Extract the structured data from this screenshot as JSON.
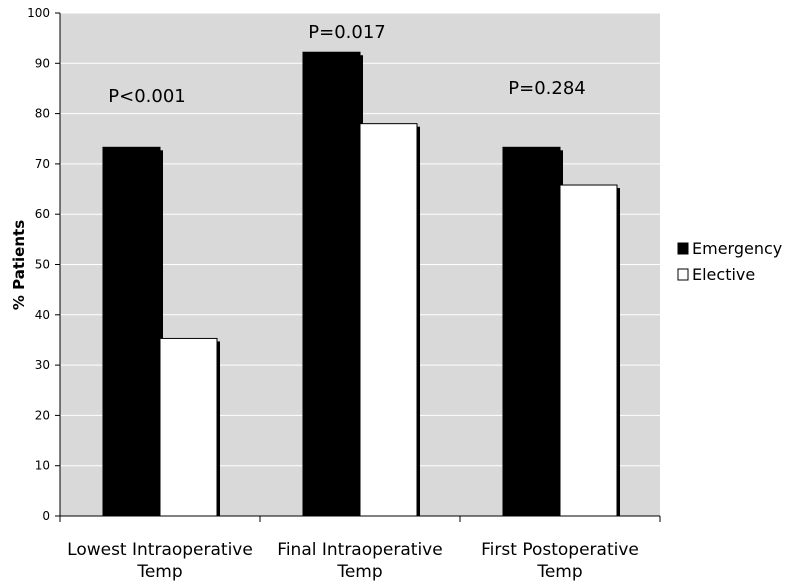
{
  "chart_data": {
    "type": "bar",
    "title": "",
    "xlabel": "",
    "ylabel": "% Patients",
    "ylim": [
      0,
      100
    ],
    "yticks": [
      0,
      10,
      20,
      30,
      40,
      50,
      60,
      70,
      80,
      90,
      100
    ],
    "grid": true,
    "legend_position": "right",
    "categories": [
      [
        "Lowest Intraoperative",
        "Temp"
      ],
      [
        "Final Intraoperative",
        "Temp"
      ],
      [
        "First Postoperative",
        "Temp"
      ]
    ],
    "series": [
      {
        "name": "Emergency",
        "values": [
          73.3,
          92.2,
          73.3
        ],
        "color": "#000000",
        "legend_marker": "■"
      },
      {
        "name": "Elective",
        "values": [
          35.3,
          78.0,
          65.8
        ],
        "color": "#ffffff",
        "legend_marker": "□"
      }
    ],
    "annotations": [
      "P<0.001",
      "P=0.017",
      "P=0.284"
    ],
    "colors": {
      "plot_background": "#d9d9d9",
      "gridline": "#ffffff",
      "bar_shadow": "#000000"
    }
  }
}
